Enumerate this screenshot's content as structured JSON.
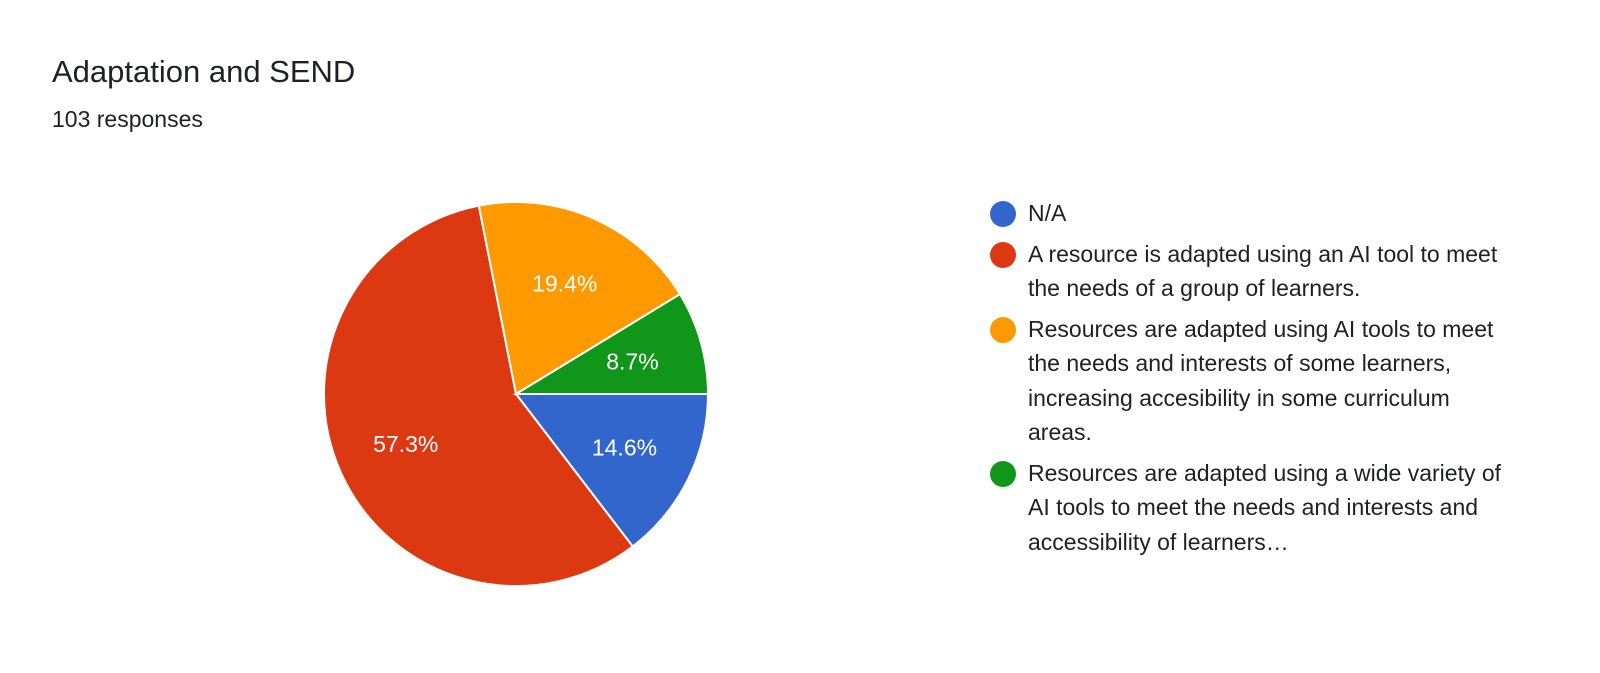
{
  "header": {
    "title": "Adaptation and SEND",
    "subtitle": "103 responses"
  },
  "chart_data": {
    "type": "pie",
    "title": "Adaptation and SEND",
    "subtitle": "103 responses",
    "legend_position": "right",
    "slices": [
      {
        "label": "N/A",
        "value": 14.6,
        "display": "14.6%",
        "color": "#3366cc"
      },
      {
        "label": "A resource is adapted using an AI tool to meet the needs of a group of learners.",
        "value": 57.3,
        "display": "57.3%",
        "color": "#dc3912"
      },
      {
        "label": "Resources are adapted using AI tools to meet the needs and interests of some learners, increasing accesibility in some curriculum areas.",
        "value": 19.4,
        "display": "19.4%",
        "color": "#ff9900"
      },
      {
        "label": "Resources are adapted using a wide variety of AI tools to meet the needs and interests and accessibility of learners…",
        "value": 8.7,
        "display": "8.7%",
        "color": "#109618"
      }
    ]
  }
}
